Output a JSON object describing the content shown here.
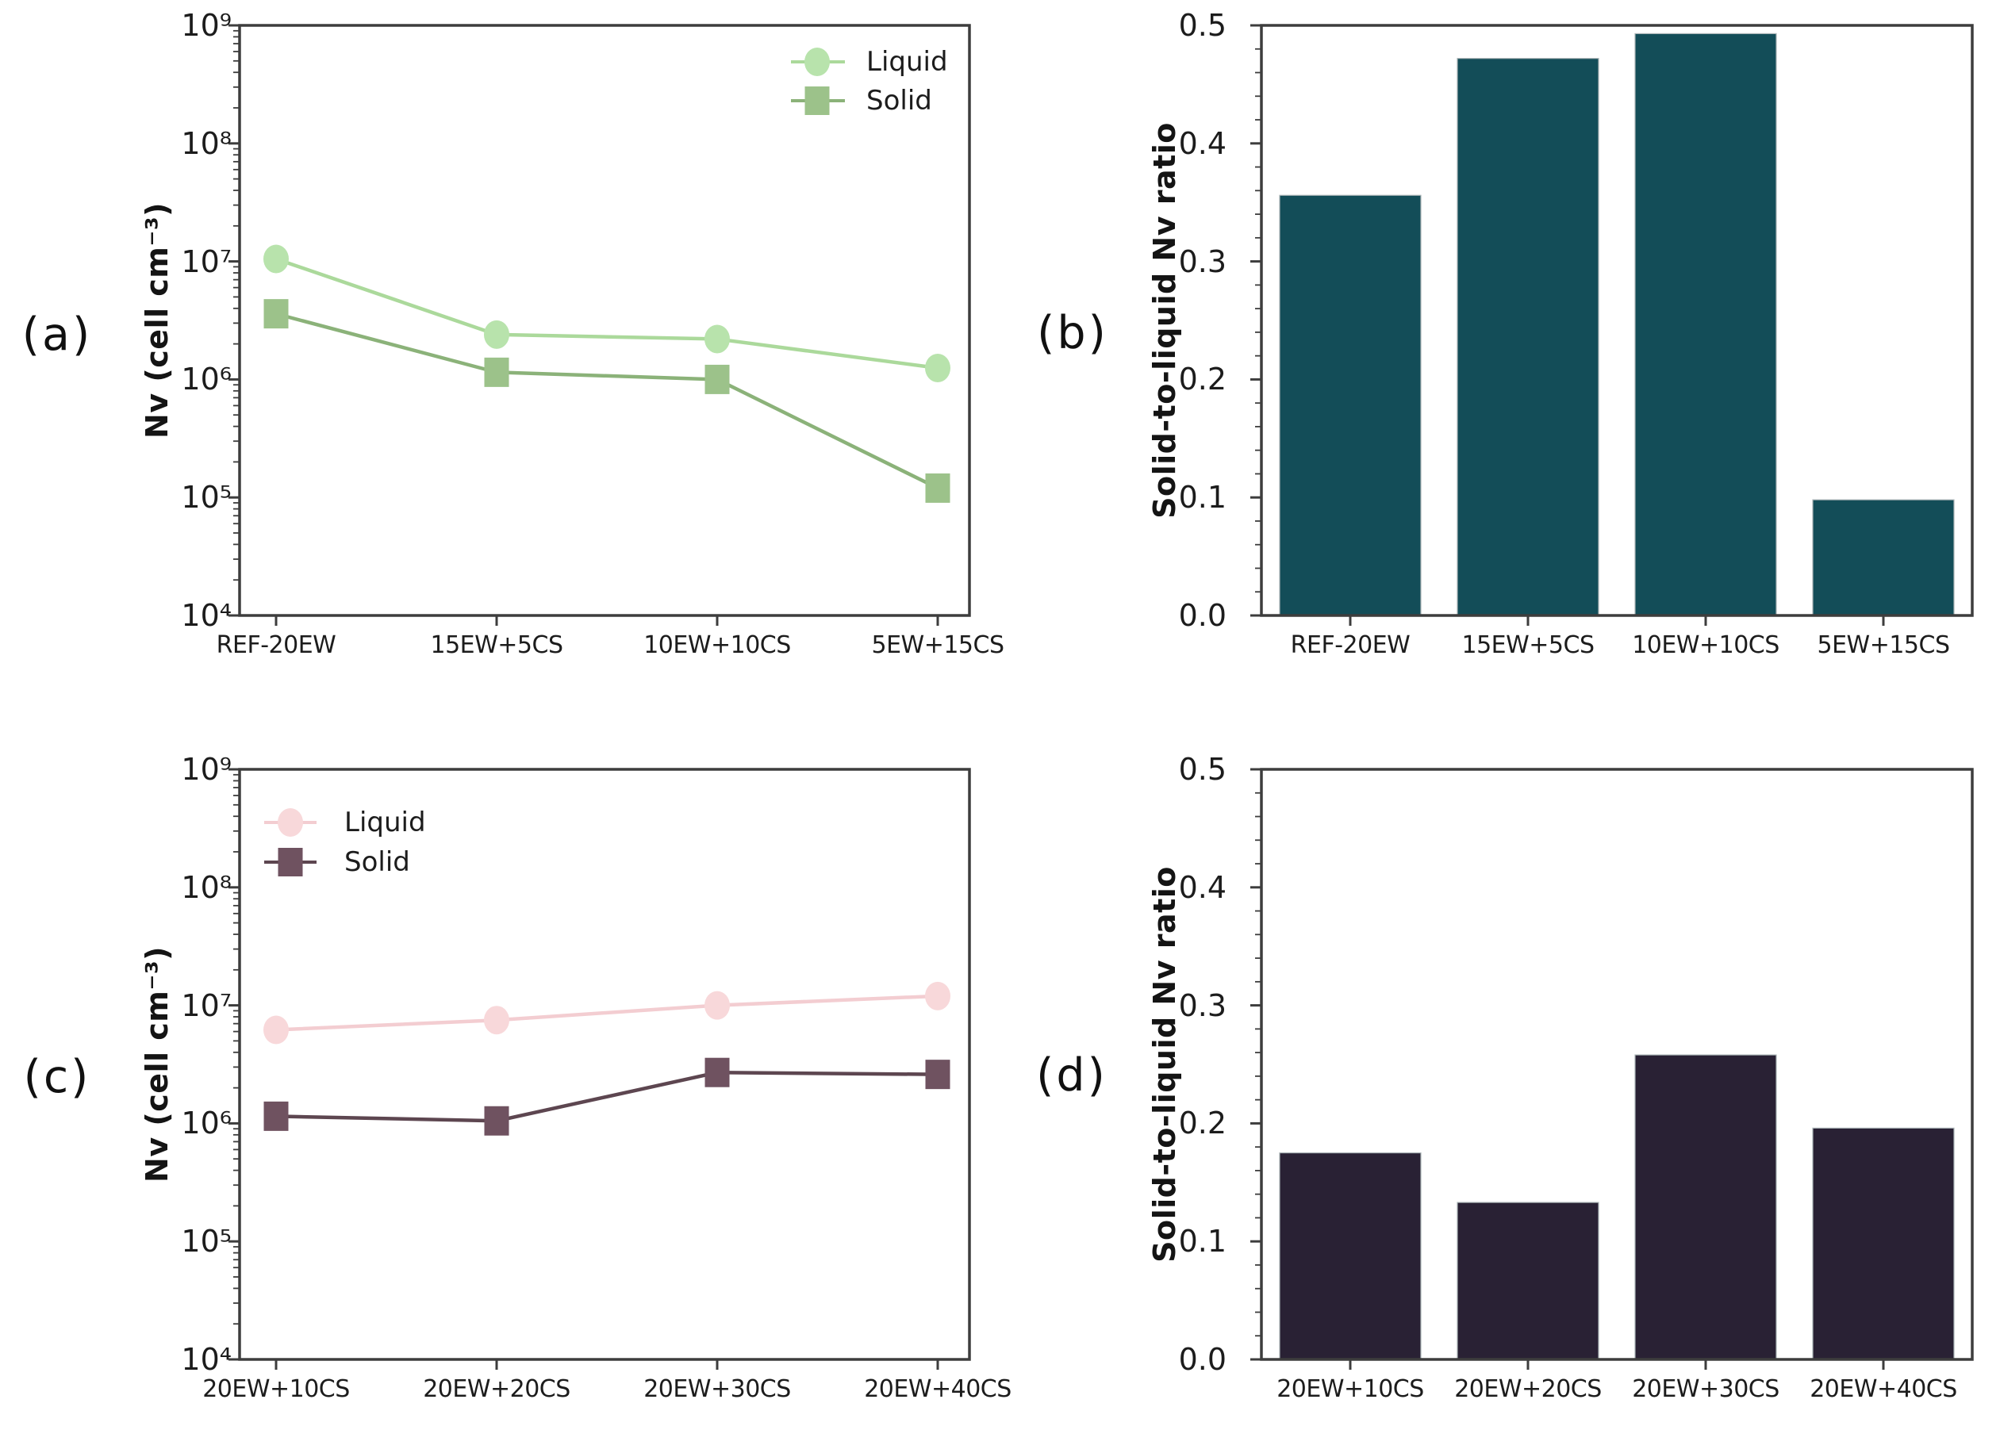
{
  "figure": {
    "background": "#ffffff",
    "axis_color": "#3d3d3d",
    "text_color": "#1c1c1c"
  },
  "chart_data": [
    {
      "id": "a",
      "panel_label": "(a)",
      "type": "line",
      "yscale": "log",
      "ylim": [
        10000,
        1000000000
      ],
      "y_tick_labels": [
        "10⁴",
        "10⁵",
        "10⁶",
        "10⁷",
        "10⁸",
        "10⁹"
      ],
      "ylabel": "Nv (cell cm⁻³)",
      "xlabel": "",
      "grid": false,
      "categories": [
        "REF-20EW",
        "15EW+5CS",
        "10EW+10CS",
        "5EW+15CS"
      ],
      "series": [
        {
          "name": "Liquid",
          "marker": "circle",
          "marker_color": "#b8e3ac",
          "line_color": "#abd99b",
          "values": [
            10500000,
            2400000,
            2200000,
            1250000
          ]
        },
        {
          "name": "Solid",
          "marker": "square",
          "marker_color": "#9cc28a",
          "line_color": "#8bb279",
          "values": [
            3600000,
            1150000,
            1000000,
            120000
          ]
        }
      ],
      "legend": {
        "position": "top-right",
        "entries": [
          "Liquid",
          "Solid"
        ]
      }
    },
    {
      "id": "b",
      "panel_label": "(b)",
      "type": "bar",
      "yscale": "linear",
      "ylim": [
        0.0,
        0.5
      ],
      "y_tick_labels": [
        "0.0",
        "0.1",
        "0.2",
        "0.3",
        "0.4",
        "0.5"
      ],
      "ylabel": "Solid-to-liquid Nv ratio",
      "xlabel": "",
      "grid": false,
      "bar_color": "#134d58",
      "categories": [
        "REF-20EW",
        "15EW+5CS",
        "10EW+10CS",
        "5EW+15CS"
      ],
      "values": [
        0.356,
        0.472,
        0.493,
        0.098
      ]
    },
    {
      "id": "c",
      "panel_label": "(c)",
      "type": "line",
      "yscale": "log",
      "ylim": [
        10000,
        1000000000
      ],
      "y_tick_labels": [
        "10⁴",
        "10⁵",
        "10⁶",
        "10⁷",
        "10⁸",
        "10⁹"
      ],
      "ylabel": "Nv (cell cm⁻³)",
      "xlabel": "",
      "grid": false,
      "categories": [
        "20EW+10CS",
        "20EW+20CS",
        "20EW+30CS",
        "20EW+40CS"
      ],
      "series": [
        {
          "name": "Liquid",
          "marker": "circle",
          "marker_color": "#f8d8da",
          "line_color": "#f3cdd1",
          "values": [
            6200000,
            7500000,
            10000000,
            12000000
          ]
        },
        {
          "name": "Solid",
          "marker": "square",
          "marker_color": "#6f5260",
          "line_color": "#5d4650",
          "values": [
            1150000,
            1050000,
            2700000,
            2600000
          ]
        }
      ],
      "legend": {
        "position": "top-left",
        "entries": [
          "Liquid",
          "Solid"
        ]
      }
    },
    {
      "id": "d",
      "panel_label": "(d)",
      "type": "bar",
      "yscale": "linear",
      "ylim": [
        0.0,
        0.5
      ],
      "y_tick_labels": [
        "0.0",
        "0.1",
        "0.2",
        "0.3",
        "0.4",
        "0.5"
      ],
      "ylabel": "Solid-to-liquid Nv ratio",
      "xlabel": "",
      "grid": false,
      "bar_color": "#292134",
      "categories": [
        "20EW+10CS",
        "20EW+20CS",
        "20EW+30CS",
        "20EW+40CS"
      ],
      "values": [
        0.175,
        0.133,
        0.258,
        0.196
      ]
    }
  ]
}
